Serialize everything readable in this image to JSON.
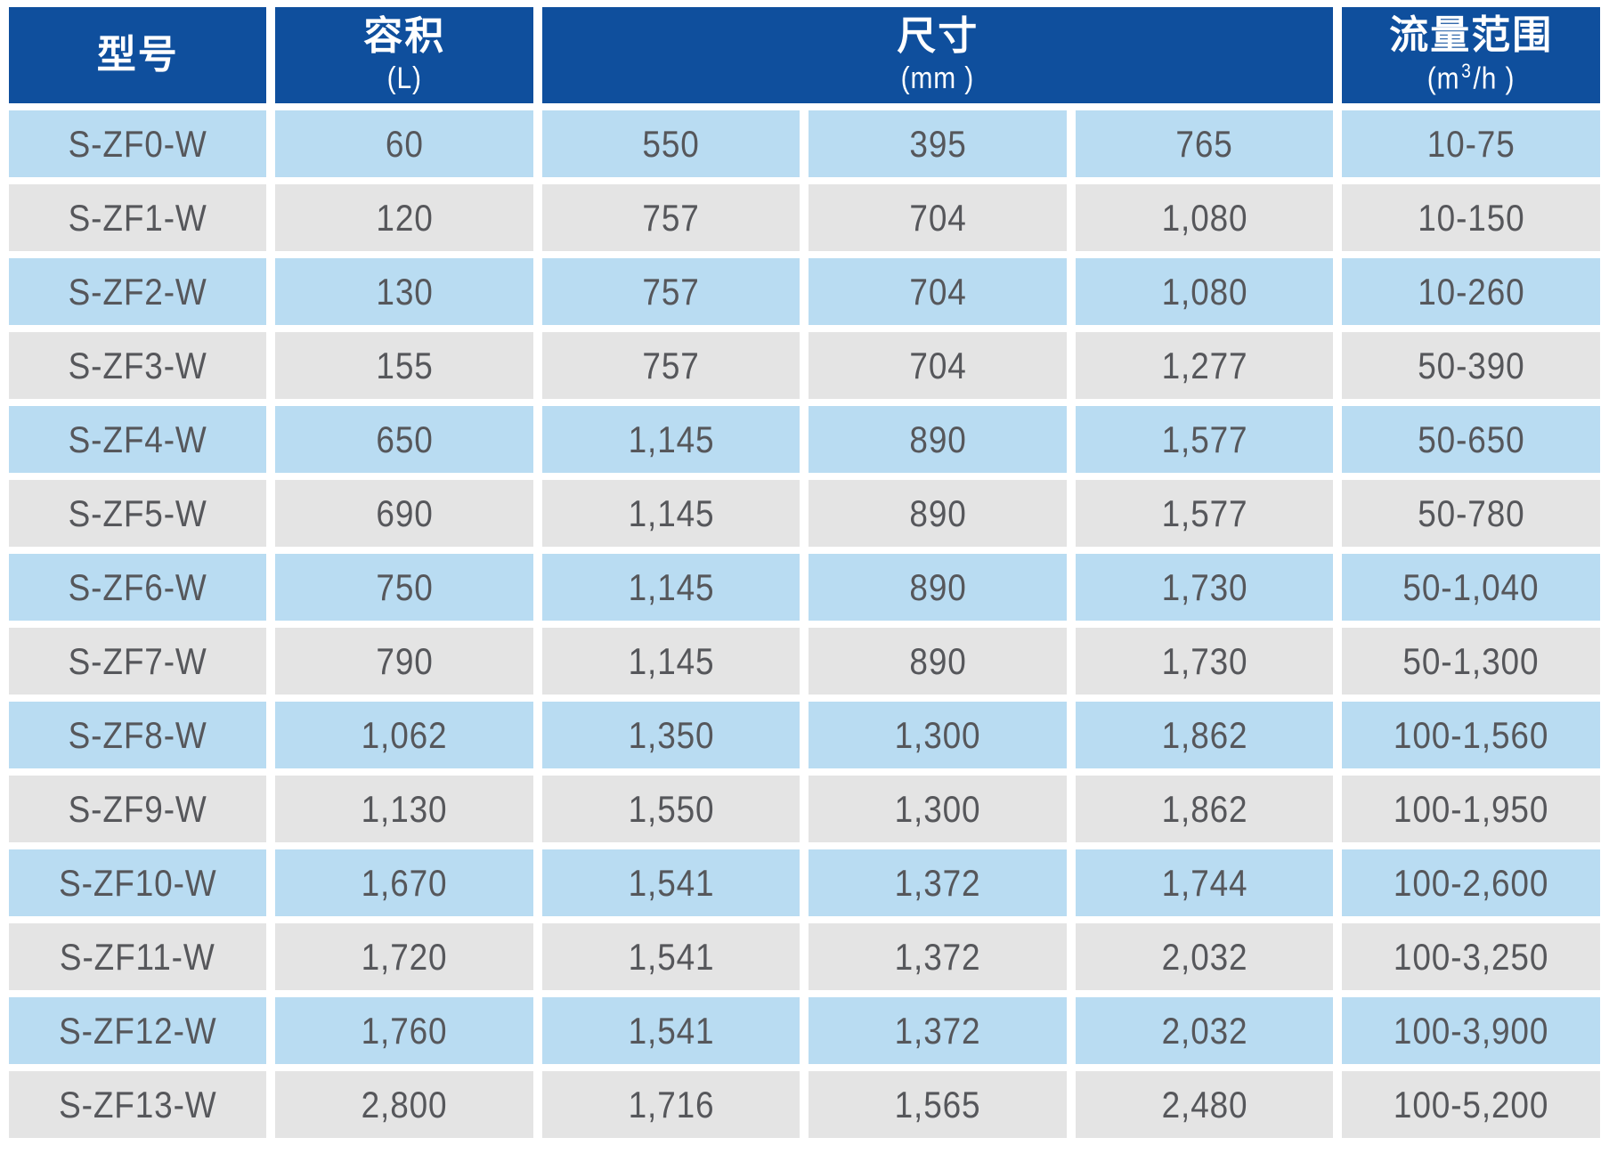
{
  "colors": {
    "header_bg": "#0F4F9D",
    "row_blue": "#B9DCF2",
    "row_gray": "#E4E4E4",
    "header_text": "#FFFFFF",
    "cell_text": "#56575B",
    "page_bg": "#FFFFFF"
  },
  "table": {
    "header": {
      "model": {
        "title": "型号"
      },
      "volume": {
        "title": "容积",
        "unit": "(L)"
      },
      "size": {
        "title": "尺寸",
        "unit": "(mm )"
      },
      "flow": {
        "title": "流量范围",
        "unit_prefix": "(m",
        "unit_sup": "3",
        "unit_suffix": "/h )"
      }
    },
    "rows": [
      {
        "model": "S-ZF0-W",
        "volume": "60",
        "dim1": "550",
        "dim2": "395",
        "dim3": "765",
        "flow": "10-75"
      },
      {
        "model": "S-ZF1-W",
        "volume": "120",
        "dim1": "757",
        "dim2": "704",
        "dim3": "1,080",
        "flow": "10-150"
      },
      {
        "model": "S-ZF2-W",
        "volume": "130",
        "dim1": "757",
        "dim2": "704",
        "dim3": "1,080",
        "flow": "10-260"
      },
      {
        "model": "S-ZF3-W",
        "volume": "155",
        "dim1": "757",
        "dim2": "704",
        "dim3": "1,277",
        "flow": "50-390"
      },
      {
        "model": "S-ZF4-W",
        "volume": "650",
        "dim1": "1,145",
        "dim2": "890",
        "dim3": "1,577",
        "flow": "50-650"
      },
      {
        "model": "S-ZF5-W",
        "volume": "690",
        "dim1": "1,145",
        "dim2": "890",
        "dim3": "1,577",
        "flow": "50-780"
      },
      {
        "model": "S-ZF6-W",
        "volume": "750",
        "dim1": "1,145",
        "dim2": "890",
        "dim3": "1,730",
        "flow": "50-1,040"
      },
      {
        "model": "S-ZF7-W",
        "volume": "790",
        "dim1": "1,145",
        "dim2": "890",
        "dim3": "1,730",
        "flow": "50-1,300"
      },
      {
        "model": "S-ZF8-W",
        "volume": "1,062",
        "dim1": "1,350",
        "dim2": "1,300",
        "dim3": "1,862",
        "flow": "100-1,560"
      },
      {
        "model": "S-ZF9-W",
        "volume": "1,130",
        "dim1": "1,550",
        "dim2": "1,300",
        "dim3": "1,862",
        "flow": "100-1,950"
      },
      {
        "model": "S-ZF10-W",
        "volume": "1,670",
        "dim1": "1,541",
        "dim2": "1,372",
        "dim3": "1,744",
        "flow": "100-2,600"
      },
      {
        "model": "S-ZF11-W",
        "volume": "1,720",
        "dim1": "1,541",
        "dim2": "1,372",
        "dim3": "2,032",
        "flow": "100-3,250"
      },
      {
        "model": "S-ZF12-W",
        "volume": "1,760",
        "dim1": "1,541",
        "dim2": "1,372",
        "dim3": "2,032",
        "flow": "100-3,900"
      },
      {
        "model": "S-ZF13-W",
        "volume": "2,800",
        "dim1": "1,716",
        "dim2": "1,565",
        "dim3": "2,480",
        "flow": "100-5,200"
      }
    ]
  }
}
